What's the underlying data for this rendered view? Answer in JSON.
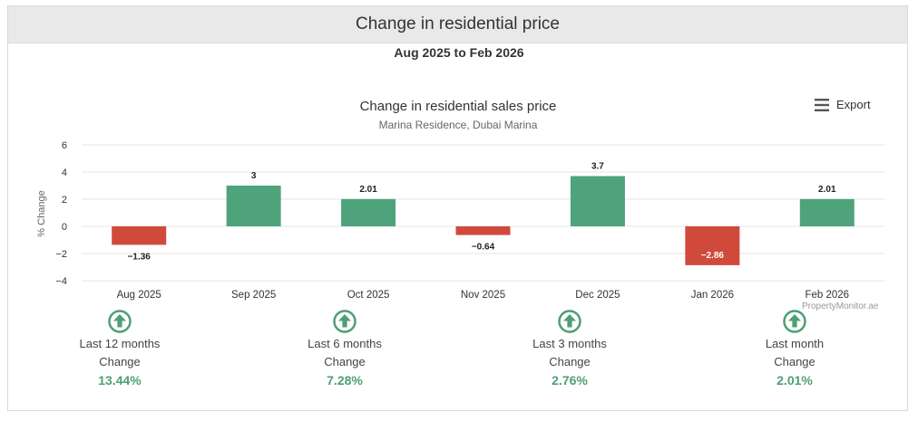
{
  "panel": {
    "title": "Change in residential price"
  },
  "period": "Aug 2025 to Feb 2026",
  "export": {
    "label": "Export",
    "icon": "menu-icon"
  },
  "credit": "PropertyMonitor.ae",
  "colors": {
    "positive": "#4fa37b",
    "negative": "#d04a3c",
    "accent_green": "#4e9f73"
  },
  "chart_data": {
    "type": "bar",
    "title": "Change in residential sales price",
    "subtitle": "Marina Residence, Dubai Marina",
    "xlabel": "",
    "ylabel": "% Change",
    "ylim": [
      -4,
      6
    ],
    "yticks": [
      6,
      4,
      2,
      0,
      -2,
      -4
    ],
    "ytick_labels": [
      "6",
      "4",
      "2",
      "0",
      "−2",
      "−4"
    ],
    "categories": [
      "Aug 2025",
      "Sep 2025",
      "Oct 2025",
      "Nov 2025",
      "Dec 2025",
      "Jan 2026",
      "Feb 2026"
    ],
    "values": [
      -1.36,
      3,
      2.01,
      -0.64,
      3.7,
      -2.86,
      2.01
    ],
    "data_labels": [
      "−1.36",
      "3",
      "2.01",
      "−0.64",
      "3.7",
      "−2.86",
      "2.01"
    ],
    "grid": true,
    "legend": "none"
  },
  "summary": [
    {
      "period": "Last 12 months",
      "label": "Change",
      "value": "13.44%",
      "icon": "arrow-up-circle-icon"
    },
    {
      "period": "Last 6 months",
      "label": "Change",
      "value": "7.28%",
      "icon": "arrow-up-circle-icon"
    },
    {
      "period": "Last 3 months",
      "label": "Change",
      "value": "2.76%",
      "icon": "arrow-up-circle-icon"
    },
    {
      "period": "Last month",
      "label": "Change",
      "value": "2.01%",
      "icon": "arrow-up-circle-icon"
    }
  ]
}
